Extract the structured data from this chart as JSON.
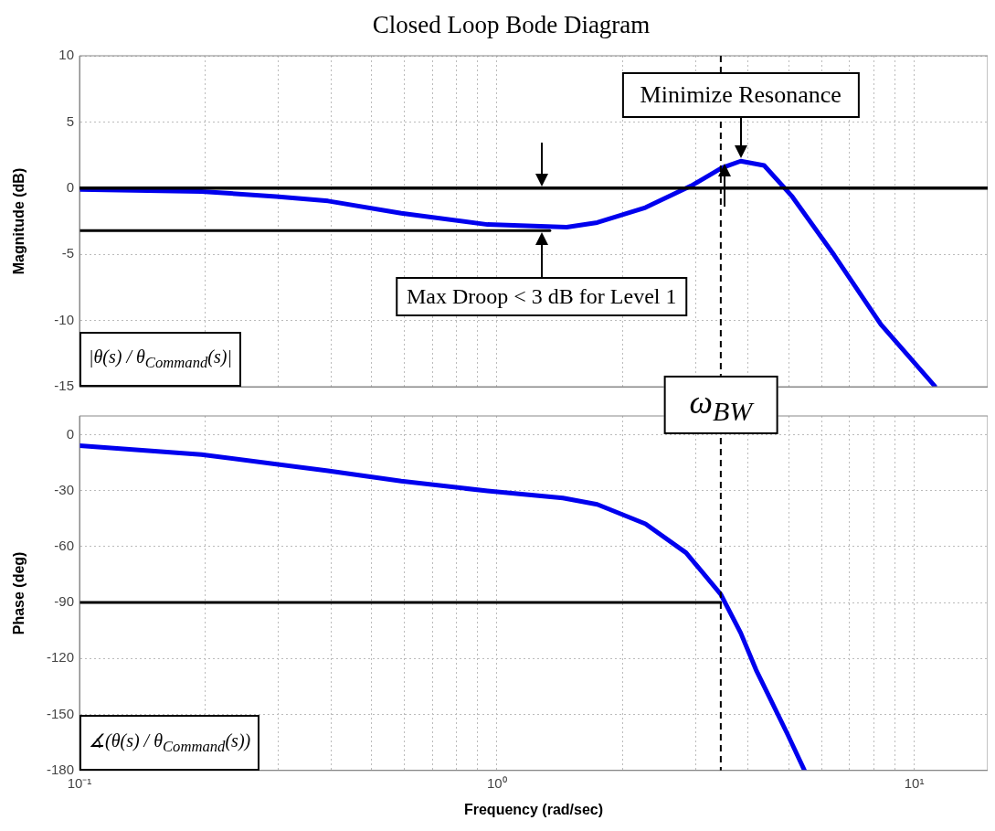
{
  "chart_data": [
    {
      "type": "line",
      "title": "Closed Loop Bode Diagram",
      "ylabel": "Magnitude (dB)",
      "log": "x",
      "grid": true,
      "tick_labels": "y",
      "xlim": [
        0.1,
        15
      ],
      "xticks": [
        {
          "value": 0.1,
          "label": null
        },
        {
          "value": 0.2,
          "label": null
        },
        {
          "value": 0.3,
          "label": null
        },
        {
          "value": 0.4,
          "label": null
        },
        {
          "value": 0.5,
          "label": null
        },
        {
          "value": 0.6,
          "label": null
        },
        {
          "value": 0.7,
          "label": null
        },
        {
          "value": 0.8,
          "label": null
        },
        {
          "value": 0.9,
          "label": null
        },
        {
          "value": 1,
          "label": null
        },
        {
          "value": 2,
          "label": null
        },
        {
          "value": 3,
          "label": null
        },
        {
          "value": 4,
          "label": null
        },
        {
          "value": 5,
          "label": null
        },
        {
          "value": 6,
          "label": null
        },
        {
          "value": 7,
          "label": null
        },
        {
          "value": 8,
          "label": null
        },
        {
          "value": 9,
          "label": null
        },
        {
          "value": 10,
          "label": null
        }
      ],
      "ylim": [
        -15,
        10
      ],
      "yticks": [
        -15,
        -10,
        -5,
        0,
        5,
        10
      ],
      "series": [
        {
          "color": "#0000ee",
          "x": [
            0.1,
            0.196,
            0.296,
            0.394,
            0.59,
            0.95,
            1.47,
            1.74,
            2.27,
            2.92,
            3.46,
            3.84,
            4.37,
            5.1,
            6.43,
            8.32,
            11.2
          ],
          "values": [
            -0.1,
            -0.25,
            -0.63,
            -0.97,
            -1.9,
            -2.75,
            -2.95,
            -2.6,
            -1.47,
            0.17,
            1.53,
            2.04,
            1.71,
            -0.63,
            -5.06,
            -10.3,
            -14.95
          ]
        },
        {
          "color": "#000000",
          "x": [
            0.1,
            1.34
          ],
          "values": [
            -3.2,
            -3.2
          ]
        }
      ],
      "ref_lines": [
        {
          "axis": "y",
          "value": 0,
          "color": "#000000"
        },
        {
          "axis": "x",
          "value": 3.44,
          "color": "#000000",
          "line_style": "dashed"
        }
      ],
      "annotations": [
        {
          "text": "Max Droop < 3 dB for Level 1",
          "x": 1.28,
          "y": -3.2
        },
        {
          "text": "Minimize Resonance",
          "x": 3.84,
          "y": 2.04
        },
        "|θ(s) / θ$_{Command}$(s)|"
      ]
    },
    {
      "type": "line",
      "ylabel": "Phase (deg)",
      "xlabel": "Frequency (rad/sec)",
      "log": "x",
      "grid": true,
      "xlim": [
        0.1,
        15
      ],
      "xticks": [
        {
          "value": 0.1,
          "label": "10⁻¹"
        },
        {
          "value": 0.2,
          "label": null
        },
        {
          "value": 0.3,
          "label": null
        },
        {
          "value": 0.4,
          "label": null
        },
        {
          "value": 0.5,
          "label": null
        },
        {
          "value": 0.6,
          "label": null
        },
        {
          "value": 0.7,
          "label": null
        },
        {
          "value": 0.8,
          "label": null
        },
        {
          "value": 0.9,
          "label": null
        },
        {
          "value": 1,
          "label": "10⁰"
        },
        {
          "value": 2,
          "label": null
        },
        {
          "value": 3,
          "label": null
        },
        {
          "value": 4,
          "label": null
        },
        {
          "value": 5,
          "label": null
        },
        {
          "value": 6,
          "label": null
        },
        {
          "value": 7,
          "label": null
        },
        {
          "value": 8,
          "label": null
        },
        {
          "value": 9,
          "label": null
        },
        {
          "value": 10,
          "label": "10¹"
        }
      ],
      "ylim": [
        -180,
        10
      ],
      "yticks": [
        -180,
        -150,
        -120,
        -90,
        -60,
        -30,
        0
      ],
      "series": [
        {
          "color": "#0000ee",
          "x": [
            0.1,
            0.196,
            0.394,
            0.59,
            0.95,
            1.44,
            1.74,
            2.27,
            2.84,
            3.44,
            3.84,
            4.18,
            4.97,
            5.46
          ],
          "values": [
            -5.9,
            -10.7,
            -19.4,
            -24.9,
            -30.2,
            -34,
            -37.4,
            -47.8,
            -63.3,
            -85.6,
            -106.3,
            -126.1,
            -160.5,
            -180
          ]
        },
        {
          "color": "#000000",
          "x": [
            0.1,
            3.44
          ],
          "values": [
            -90,
            -90
          ]
        }
      ],
      "ref_lines": [
        {
          "axis": "x",
          "value": 3.44,
          "color": "#000000",
          "line_style": "dashed"
        }
      ],
      "annotations": [
        {
          "text": "ω$_{BW}$",
          "x": 3.44,
          "y": 10
        },
        "∡(θ(s) / θ$_{Command}$(s))"
      ]
    }
  ]
}
